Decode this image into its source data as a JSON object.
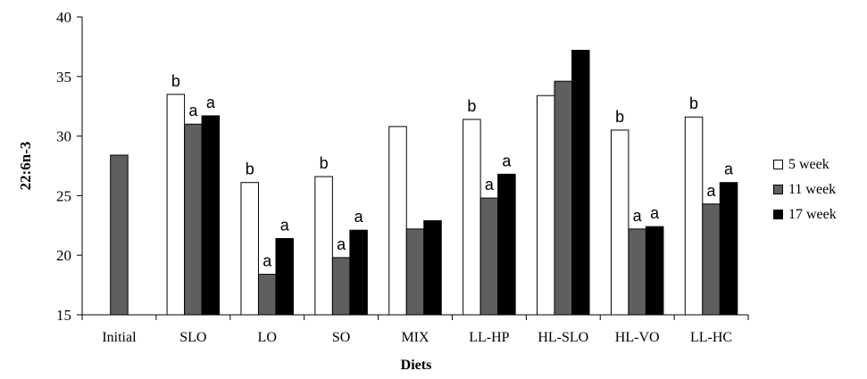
{
  "chart_data": {
    "type": "bar",
    "title": "",
    "xlabel": "Diets",
    "ylabel": "22:6n-3",
    "ylim": [
      15,
      40
    ],
    "yticks": [
      15,
      20,
      25,
      30,
      35,
      40
    ],
    "grid": false,
    "legend_position": "right",
    "categories": [
      "Initial",
      "SLO",
      "LO",
      "SO",
      "MIX",
      "LL-HP",
      "HL-SLO",
      "HL-VO",
      "LL-HC"
    ],
    "series": [
      {
        "name": "5 week",
        "color": "#ffffff",
        "values": [
          null,
          33.5,
          26.1,
          26.6,
          30.8,
          31.4,
          33.4,
          30.5,
          31.6
        ],
        "labels": [
          "",
          "b",
          "b",
          "b",
          "",
          "b",
          "",
          "b",
          "b"
        ]
      },
      {
        "name": "11 week",
        "color": "#5f5f5f",
        "values": [
          28.4,
          31.0,
          18.4,
          19.8,
          22.2,
          24.8,
          34.6,
          22.2,
          24.3
        ],
        "labels": [
          "",
          "a",
          "a",
          "a",
          "",
          "a",
          "",
          "a",
          "a"
        ]
      },
      {
        "name": "17 week",
        "color": "#000000",
        "values": [
          null,
          31.7,
          21.4,
          22.1,
          22.9,
          26.8,
          37.2,
          22.4,
          26.1
        ],
        "labels": [
          "",
          "a",
          "a",
          "a",
          "",
          "a",
          "",
          "a",
          "a"
        ]
      }
    ]
  }
}
